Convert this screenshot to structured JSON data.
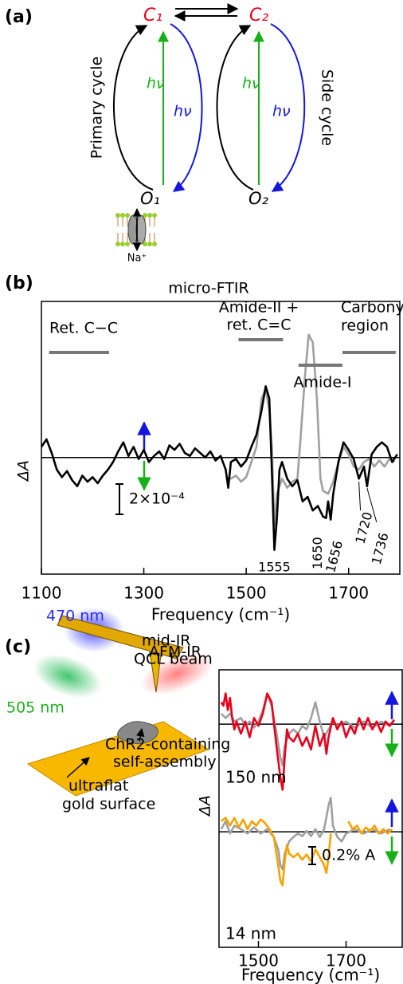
{
  "panel_a": {
    "label": "(a)",
    "nodes": [
      "C₁",
      "C₂",
      "O₁",
      "O₂"
    ],
    "photon_labels": [
      "hν",
      "hν",
      "hν",
      "hν"
    ],
    "cycles": [
      "Primary cycle",
      "Side cycle"
    ],
    "ion": "Na⁺"
  },
  "panel_c": {
    "label": "(c)",
    "schematic": {
      "blue_light": "470 nm",
      "green_light": "505 nm",
      "ir_beam": [
        "mid-IR",
        "QCL beam"
      ],
      "sample": [
        "ChR2-containing",
        "self-assembly"
      ],
      "substrate": [
        "ultraflat",
        "gold surface"
      ]
    }
  },
  "chart_data": [
    {
      "type": "line",
      "panel_label": "(b)",
      "title": "micro-FTIR",
      "ylabel": "ΔA",
      "xlabel": "Frequency (cm⁻¹)",
      "xlim": [
        1100,
        1800
      ],
      "xticks": [
        1100,
        1300,
        1500,
        1700
      ],
      "ylim": [
        -7.7,
        10.3
      ],
      "series": [
        {
          "color": "#000000",
          "x": [
            1100,
            1110,
            1120,
            1130,
            1140,
            1150,
            1160,
            1170,
            1180,
            1190,
            1200,
            1210,
            1220,
            1230,
            1240,
            1250,
            1260,
            1270,
            1280,
            1290,
            1300,
            1310,
            1320,
            1330,
            1340,
            1350,
            1360,
            1370,
            1380,
            1390,
            1400,
            1410,
            1420,
            1430,
            1440,
            1450,
            1460,
            1465,
            1470,
            1480,
            1490,
            1500,
            1510,
            1520,
            1530,
            1538,
            1545,
            1550,
            1555,
            1560,
            1565,
            1570,
            1580,
            1590,
            1600,
            1610,
            1620,
            1630,
            1640,
            1650,
            1656,
            1660,
            1665,
            1670,
            1680,
            1690,
            1700,
            1710,
            1720,
            1730,
            1736,
            1745,
            1755,
            1765,
            1775,
            1785,
            1795
          ],
          "values": [
            0.7,
            1.2,
            0.3,
            -0.8,
            -1.3,
            -0.9,
            -1.5,
            -1.9,
            -1.2,
            -1.6,
            -1.3,
            -1.7,
            -1.2,
            -0.8,
            -0.3,
            0.4,
            1.0,
            0.1,
            0.7,
            -0.1,
            0.5,
            -0.3,
            0.1,
            0.4,
            -0.1,
            0.8,
            0.5,
            0.9,
            0.3,
            0.1,
            0.6,
            0.3,
            0,
            0.4,
            -0.2,
            0.1,
            -0.8,
            -2.0,
            -0.3,
            -0.1,
            -0.6,
            -0.2,
            0.7,
            1.5,
            3.1,
            4.7,
            3.9,
            -0.8,
            -6.1,
            -4.0,
            -0.8,
            -0.3,
            -1.4,
            -1.9,
            -1.5,
            -2.9,
            -2.6,
            -3.5,
            -3.2,
            -3.9,
            -4.0,
            -2.9,
            -4.1,
            -2.4,
            -0.3,
            1.0,
            0.5,
            -0.1,
            -1.4,
            -0.6,
            -1.9,
            0.2,
            0.7,
            1.0,
            0.7,
            -0.3,
            0.2
          ]
        },
        {
          "color": "#a0a0a0",
          "x": [
            1460,
            1470,
            1480,
            1490,
            1500,
            1510,
            1520,
            1530,
            1538,
            1545,
            1550,
            1555,
            1560,
            1570,
            1580,
            1590,
            1600,
            1605,
            1615,
            1622,
            1630,
            1638,
            1645,
            1650,
            1660,
            1670,
            1680,
            1690,
            1700,
            1710,
            1720,
            1730,
            1740,
            1750,
            1760,
            1770,
            1780,
            1790
          ],
          "values": [
            -1.3,
            -1.4,
            -1.2,
            -1.6,
            -1.3,
            -0.3,
            0.7,
            3.9,
            4.5,
            3.1,
            0.7,
            -4.5,
            -2.4,
            -1.4,
            -2.0,
            -1.6,
            -1.4,
            0.7,
            5.5,
            8.1,
            7.6,
            3.9,
            -1.4,
            -2.2,
            -2.4,
            -1.6,
            -0.3,
            0.7,
            0.2,
            -0.6,
            -0.8,
            -0.3,
            -0.1,
            -0.6,
            -0.2,
            -0.6,
            -0.1,
            -0.3
          ]
        }
      ],
      "regions": [
        {
          "label": [
            "Ret. C−C"
          ],
          "range": [
            1115,
            1232
          ]
        },
        {
          "label": [
            "Amide-II +",
            "ret. C=C"
          ],
          "range": [
            1485,
            1572
          ]
        },
        {
          "label": [
            "Amide-I"
          ],
          "range": [
            1602,
            1688
          ]
        },
        {
          "label": [
            "Carbonyl",
            "region"
          ],
          "range": [
            1688,
            1792
          ]
        }
      ],
      "peak_labels": [
        1555,
        1650,
        1656,
        1720,
        1736
      ],
      "scale_bar": {
        "value": 2,
        "label": "2×10⁻⁴"
      }
    },
    {
      "type": "line",
      "title": "AFM-IR",
      "ylabel": "ΔA",
      "xlim": [
        1410,
        1830
      ],
      "ylim": [
        -0.81,
        0.62
      ],
      "series": [
        {
          "name": "150 nm",
          "color": "#e8001c",
          "x": [
            1415,
            1420,
            1425,
            1430,
            1435,
            1440,
            1445,
            1450,
            1460,
            1470,
            1480,
            1490,
            1500,
            1510,
            1520,
            1530,
            1540,
            1550,
            1555,
            1560,
            1565,
            1570,
            1580,
            1590,
            1600,
            1610,
            1620,
            1630,
            1640,
            1650,
            1655,
            1660,
            1670,
            1680,
            1690,
            1700,
            1710,
            1720,
            1730,
            1740,
            1750,
            1760,
            1770,
            1780,
            1790,
            1800,
            1810
          ],
          "values": [
            0.25,
            0.21,
            0.35,
            0.16,
            0.3,
            0.07,
            -0.06,
            0.03,
            -0.11,
            0.03,
            -0.15,
            0.07,
            -0.02,
            0.12,
            0.35,
            0.25,
            -0.2,
            -0.61,
            -0.75,
            -0.38,
            -0.06,
            -0.15,
            -0.2,
            -0.11,
            -0.25,
            -0.15,
            -0.29,
            -0.02,
            -0.25,
            -0.11,
            -0.34,
            -0.15,
            0.07,
            -0.06,
            0.03,
            -0.15,
            -0.02,
            -0.11,
            0.07,
            -0.06,
            0.07,
            -0.06,
            0.03,
            -0.09,
            0.03,
            -0.02,
            0.05
          ]
        },
        {
          "color": "#a0a0a0",
          "x": [
            1415,
            1425,
            1435,
            1445,
            1460,
            1470,
            1480,
            1490,
            1500,
            1510,
            1520,
            1530,
            1540,
            1550,
            1555,
            1560,
            1570,
            1580,
            1590,
            1600,
            1610,
            1620,
            1630,
            1640,
            1650,
            1660,
            1670,
            1680,
            1700,
            1720,
            1740,
            1760,
            1780,
            1800
          ],
          "values": [
            0.12,
            0.07,
            0.12,
            0.03,
            0.07,
            -0.02,
            0.03,
            -0.04,
            0.03,
            0.16,
            0.33,
            0.21,
            -0.06,
            -0.38,
            -0.47,
            -0.25,
            -0.11,
            -0.06,
            -0.11,
            -0.02,
            -0.06,
            0.07,
            0.25,
            0.03,
            -0.15,
            -0.06,
            0.03,
            -0.02,
            0.03,
            -0.04,
            0.03,
            -0.04,
            0.03,
            -0.02
          ]
        }
      ]
    },
    {
      "type": "line",
      "xlabel": "Frequency (cm⁻¹)",
      "xlim": [
        1410,
        1830
      ],
      "xticks": [
        1500,
        1700
      ],
      "ylim": [
        -1.32,
        0.42
      ],
      "series": [
        {
          "name": "14 nm",
          "color": "#f5a300",
          "x": [
            1415,
            1425,
            1435,
            1445,
            1455,
            1465,
            1475,
            1485,
            1495,
            1505,
            1515,
            1525,
            1535,
            1545,
            1550,
            1555,
            1560,
            1565,
            1570,
            1580,
            1590,
            1600,
            1610,
            1620,
            1630,
            1640,
            1650,
            1655,
            1660,
            1665,
            1685,
            1705,
            1715,
            1725,
            1735,
            1745,
            1755,
            1765,
            1775,
            1785,
            1795,
            1805
          ],
          "values": [
            0.12,
            0.16,
            0.07,
            0.16,
            0.05,
            0.14,
            0.03,
            0.12,
            0.07,
            0.14,
            0.1,
            0.03,
            -0.06,
            -0.38,
            -0.56,
            -0.61,
            -0.34,
            -0.15,
            -0.25,
            -0.29,
            -0.25,
            -0.32,
            -0.26,
            -0.34,
            -0.2,
            -0.29,
            -0.38,
            -0.47,
            -0.29,
            -0.02,
            null,
            0.12,
            0.03,
            0.07,
            -0.02,
            0.05,
            0.01,
            0.07,
            -0.02,
            0.03,
            -0.02,
            0.03
          ]
        },
        {
          "color": "#a0a0a0",
          "x": [
            1415,
            1425,
            1435,
            1445,
            1460,
            1475,
            1490,
            1505,
            1520,
            1535,
            1545,
            1550,
            1555,
            1560,
            1570,
            1580,
            1590,
            1600,
            1610,
            1620,
            1630,
            1640,
            1650,
            1660,
            1665,
            1670,
            1680,
            1690,
            1700,
            1720,
            1740,
            1760,
            1780,
            1800
          ],
          "values": [
            0.03,
            0.12,
            -0.02,
            0.07,
            0.03,
            -0.02,
            0.05,
            -0.02,
            0.03,
            -0.06,
            -0.2,
            -0.38,
            -0.43,
            -0.25,
            -0.11,
            -0.06,
            -0.02,
            -0.05,
            0.01,
            -0.05,
            0.03,
            -0.06,
            0.03,
            0.3,
            0.39,
            0.07,
            -0.06,
            -0.11,
            -0.02,
            0.03,
            -0.02,
            0.03,
            -0.02,
            0.03
          ]
        }
      ],
      "scale_bar": {
        "value": 0.2,
        "label": "0.2% A"
      }
    }
  ]
}
